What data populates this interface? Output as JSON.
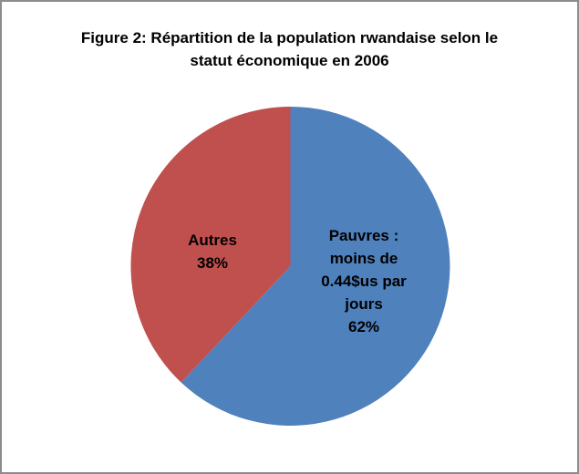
{
  "chart_data": {
    "type": "pie",
    "title": "Figure 2: Répartition de la population rwandaise selon le statut économique en 2006",
    "title_lines": [
      "Figure 2: Répartition de la population rwandaise selon le",
      "statut économique en 2006"
    ],
    "unit": "%",
    "categories": [
      "Pauvres : moins de 0.44$us par jours",
      "Autres"
    ],
    "values": [
      62,
      38
    ],
    "slices": [
      {
        "name": "pauvres",
        "label_lines": "Pauvres :\nmoins de\n0.44$us par\njours",
        "value": 62,
        "color": "#4F81BD"
      },
      {
        "name": "autres",
        "label_lines": "Autres",
        "value": 38,
        "color": "#C0504D"
      }
    ],
    "start_angle_deg": 0,
    "direction": "clockwise",
    "legend": "none",
    "label_color": "#000000",
    "background": "#FFFFFF",
    "frame_border_color": "#8C8C8C"
  }
}
